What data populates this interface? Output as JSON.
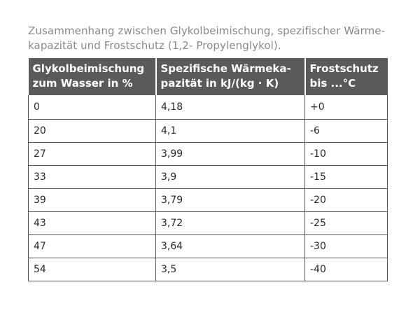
{
  "caption": {
    "line1": "Zusammenhang zwischen Glykolbeimischung, spezifischer Wärme-",
    "line2": "kapazität und Frostschutz (1,2- Propylenglykol)."
  },
  "table": {
    "headers": [
      {
        "line1": "Glykolbeimischung",
        "line2": "zum Wasser in %"
      },
      {
        "line1": "Spezifische Wärmeka-",
        "line2": "pazität in kJ/(kg · K)"
      },
      {
        "line1": "Frostschutz",
        "line2": "bis ...°C"
      }
    ],
    "rows": [
      [
        "0",
        "4,18",
        "+0"
      ],
      [
        "20",
        "4,1",
        "-6"
      ],
      [
        "27",
        "3,99",
        "-10"
      ],
      [
        "33",
        "3,9",
        "-15"
      ],
      [
        "39",
        "3,79",
        "-20"
      ],
      [
        "43",
        "3,72",
        "-25"
      ],
      [
        "47",
        "3,64",
        "-30"
      ],
      [
        "54",
        "3,5",
        "-40"
      ]
    ]
  }
}
